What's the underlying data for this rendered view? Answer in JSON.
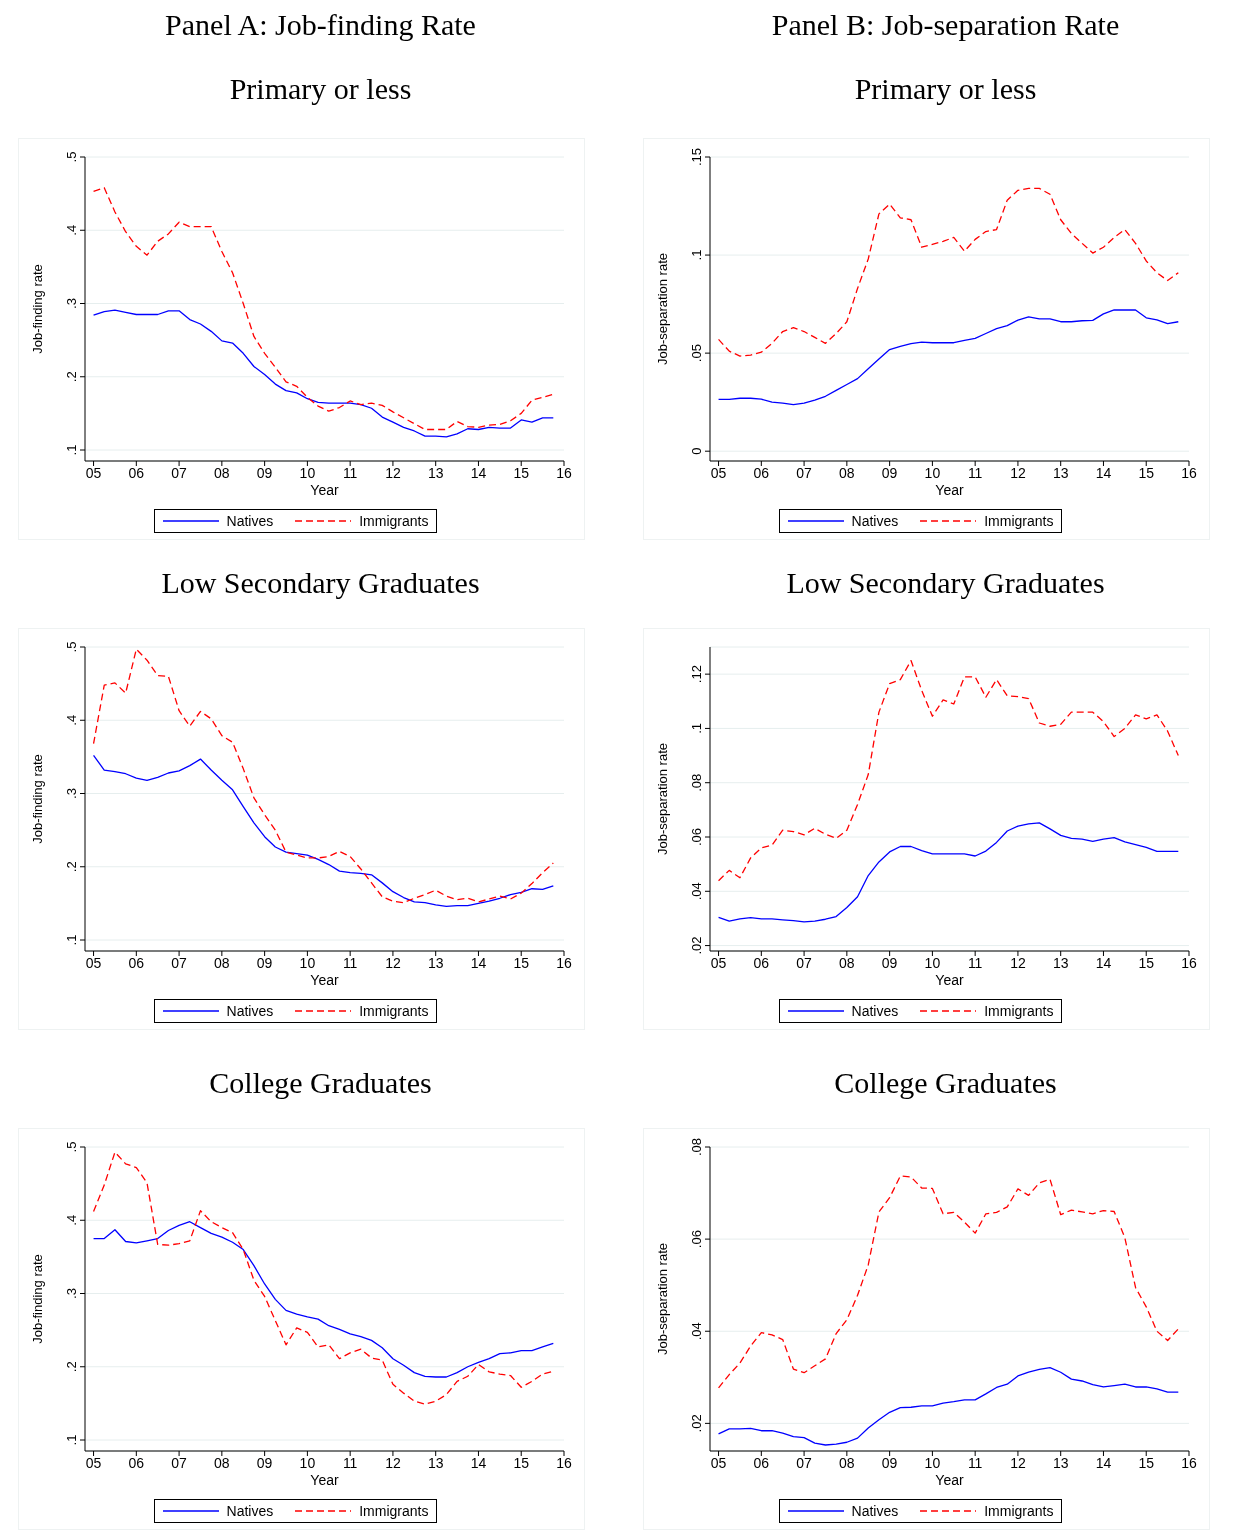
{
  "chart_data": [
    {
      "type": "line",
      "title": "Panel A: Job-finding Rate",
      "subtitle": "Primary or less",
      "xlabel": "Year",
      "ylabel": "Job-finding rate",
      "legend": "bottom",
      "grid": "y",
      "x": [
        2005,
        2005.25,
        2005.5,
        2005.75,
        2006,
        2006.25,
        2006.5,
        2006.75,
        2007,
        2007.25,
        2007.5,
        2007.75,
        2008,
        2008.25,
        2008.5,
        2008.75,
        2009,
        2009.25,
        2009.5,
        2009.75,
        2010,
        2010.25,
        2010.5,
        2010.75,
        2011,
        2011.25,
        2011.5,
        2011.75,
        2012,
        2012.25,
        2012.5,
        2012.75,
        2013,
        2013.25,
        2013.5,
        2013.75,
        2014,
        2014.25,
        2014.5,
        2014.75,
        2015,
        2015.25,
        2015.5,
        2015.75
      ],
      "xlim": [
        2004.8,
        2016
      ],
      "xticks": [
        {
          "value": 2005,
          "label": "05"
        },
        {
          "value": 2006,
          "label": "06"
        },
        {
          "value": 2007,
          "label": "07"
        },
        {
          "value": 2008,
          "label": "08"
        },
        {
          "value": 2009,
          "label": "09"
        },
        {
          "value": 2010,
          "label": "10"
        },
        {
          "value": 2011,
          "label": "11"
        },
        {
          "value": 2012,
          "label": "12"
        },
        {
          "value": 2013,
          "label": "13"
        },
        {
          "value": 2014,
          "label": "14"
        },
        {
          "value": 2015,
          "label": "15"
        },
        {
          "value": 2016,
          "label": "16"
        }
      ],
      "ylim": [
        0.085,
        0.5
      ],
      "yticks": [
        {
          "value": 0.1,
          "label": ".1"
        },
        {
          "value": 0.2,
          "label": ".2"
        },
        {
          "value": 0.3,
          "label": ".3"
        },
        {
          "value": 0.4,
          "label": ".4"
        },
        {
          "value": 0.5,
          "label": ".5"
        }
      ],
      "series": [
        {
          "name": "Natives",
          "color": "#0000ff",
          "line_style": "solid",
          "values": [
            0.284,
            0.289,
            0.291,
            0.288,
            0.285,
            0.285,
            0.285,
            0.29,
            0.29,
            0.278,
            0.272,
            0.262,
            0.249,
            0.246,
            0.232,
            0.214,
            0.203,
            0.19,
            0.181,
            0.178,
            0.17,
            0.165,
            0.164,
            0.164,
            0.164,
            0.162,
            0.157,
            0.145,
            0.138,
            0.131,
            0.126,
            0.119,
            0.119,
            0.118,
            0.122,
            0.129,
            0.128,
            0.131,
            0.13,
            0.13,
            0.141,
            0.138,
            0.144,
            0.144
          ]
        },
        {
          "name": "Immigrants",
          "color": "#ff0000",
          "line_style": "dashed",
          "values": [
            0.453,
            0.458,
            0.425,
            0.398,
            0.378,
            0.366,
            0.385,
            0.395,
            0.411,
            0.405,
            0.405,
            0.405,
            0.371,
            0.342,
            0.3,
            0.255,
            0.232,
            0.213,
            0.193,
            0.187,
            0.172,
            0.16,
            0.153,
            0.158,
            0.167,
            0.162,
            0.164,
            0.161,
            0.152,
            0.144,
            0.136,
            0.128,
            0.128,
            0.128,
            0.139,
            0.132,
            0.131,
            0.134,
            0.135,
            0.14,
            0.15,
            0.168,
            0.172,
            0.176
          ]
        }
      ]
    },
    {
      "type": "line",
      "title": "Panel B: Job-separation Rate",
      "subtitle": "Primary or less",
      "xlabel": "Year",
      "ylabel": "Job-separation rate",
      "legend": "bottom",
      "grid": "y",
      "x": [
        2005,
        2005.25,
        2005.5,
        2005.75,
        2006,
        2006.25,
        2006.5,
        2006.75,
        2007,
        2007.25,
        2007.5,
        2007.75,
        2008,
        2008.25,
        2008.5,
        2008.75,
        2009,
        2009.25,
        2009.5,
        2009.75,
        2010,
        2010.25,
        2010.5,
        2010.75,
        2011,
        2011.25,
        2011.5,
        2011.75,
        2012,
        2012.25,
        2012.5,
        2012.75,
        2013,
        2013.25,
        2013.5,
        2013.75,
        2014,
        2014.25,
        2014.5,
        2014.75,
        2015,
        2015.25,
        2015.5,
        2015.75
      ],
      "xlim": [
        2004.8,
        2016
      ],
      "xticks": [
        {
          "value": 2005,
          "label": "05"
        },
        {
          "value": 2006,
          "label": "06"
        },
        {
          "value": 2007,
          "label": "07"
        },
        {
          "value": 2008,
          "label": "08"
        },
        {
          "value": 2009,
          "label": "09"
        },
        {
          "value": 2010,
          "label": "10"
        },
        {
          "value": 2011,
          "label": "11"
        },
        {
          "value": 2012,
          "label": "12"
        },
        {
          "value": 2013,
          "label": "13"
        },
        {
          "value": 2014,
          "label": "14"
        },
        {
          "value": 2015,
          "label": "15"
        },
        {
          "value": 2016,
          "label": "16"
        }
      ],
      "ylim": [
        -0.005,
        0.15
      ],
      "yticks": [
        0,
        {
          "value": 0.05,
          "label": ".05"
        },
        {
          "value": 0.1,
          "label": ".1"
        },
        {
          "value": 0.15,
          "label": ".15"
        }
      ],
      "series": [
        {
          "name": "Natives",
          "color": "#0000ff",
          "line_style": "solid",
          "values": [
            0.0264,
            0.0264,
            0.027,
            0.027,
            0.0265,
            0.025,
            0.0245,
            0.0237,
            0.0245,
            0.026,
            0.028,
            0.031,
            0.034,
            0.037,
            0.042,
            0.047,
            0.0518,
            0.0535,
            0.0548,
            0.0556,
            0.0553,
            0.0553,
            0.0553,
            0.0565,
            0.0575,
            0.06,
            0.0625,
            0.064,
            0.0668,
            0.0685,
            0.0675,
            0.0675,
            0.066,
            0.066,
            0.0665,
            0.0667,
            0.07,
            0.072,
            0.072,
            0.072,
            0.068,
            0.067,
            0.065,
            0.066
          ]
        },
        {
          "name": "Immigrants",
          "color": "#ff0000",
          "line_style": "dashed",
          "values": [
            0.057,
            0.051,
            0.0485,
            0.049,
            0.0505,
            0.055,
            0.061,
            0.063,
            0.061,
            0.058,
            0.055,
            0.06,
            0.066,
            0.083,
            0.098,
            0.121,
            0.126,
            0.119,
            0.118,
            0.104,
            0.1055,
            0.107,
            0.109,
            0.102,
            0.108,
            0.112,
            0.113,
            0.128,
            0.133,
            0.134,
            0.134,
            0.131,
            0.118,
            0.111,
            0.106,
            0.101,
            0.104,
            0.109,
            0.113,
            0.106,
            0.097,
            0.091,
            0.087,
            0.091
          ]
        }
      ]
    },
    {
      "type": "line",
      "title": "Low Secondary Graduates",
      "xlabel": "Year",
      "ylabel": "Job-finding rate",
      "legend": "bottom",
      "grid": "y",
      "x": [
        2005,
        2005.25,
        2005.5,
        2005.75,
        2006,
        2006.25,
        2006.5,
        2006.75,
        2007,
        2007.25,
        2007.5,
        2007.75,
        2008,
        2008.25,
        2008.5,
        2008.75,
        2009,
        2009.25,
        2009.5,
        2009.75,
        2010,
        2010.25,
        2010.5,
        2010.75,
        2011,
        2011.25,
        2011.5,
        2011.75,
        2012,
        2012.25,
        2012.5,
        2012.75,
        2013,
        2013.25,
        2013.5,
        2013.75,
        2014,
        2014.25,
        2014.5,
        2014.75,
        2015,
        2015.25,
        2015.5,
        2015.75
      ],
      "xlim": [
        2004.8,
        2016
      ],
      "xticks": [
        {
          "value": 2005,
          "label": "05"
        },
        {
          "value": 2006,
          "label": "06"
        },
        {
          "value": 2007,
          "label": "07"
        },
        {
          "value": 2008,
          "label": "08"
        },
        {
          "value": 2009,
          "label": "09"
        },
        {
          "value": 2010,
          "label": "10"
        },
        {
          "value": 2011,
          "label": "11"
        },
        {
          "value": 2012,
          "label": "12"
        },
        {
          "value": 2013,
          "label": "13"
        },
        {
          "value": 2014,
          "label": "14"
        },
        {
          "value": 2015,
          "label": "15"
        },
        {
          "value": 2016,
          "label": "16"
        }
      ],
      "ylim": [
        0.085,
        0.5
      ],
      "yticks": [
        {
          "value": 0.1,
          "label": ".1"
        },
        {
          "value": 0.2,
          "label": ".2"
        },
        {
          "value": 0.3,
          "label": ".3"
        },
        {
          "value": 0.4,
          "label": ".4"
        },
        {
          "value": 0.5,
          "label": ".5"
        }
      ],
      "series": [
        {
          "name": "Natives",
          "color": "#0000ff",
          "line_style": "solid",
          "values": [
            0.352,
            0.332,
            0.33,
            0.327,
            0.321,
            0.318,
            0.322,
            0.328,
            0.331,
            0.338,
            0.347,
            0.332,
            0.318,
            0.305,
            0.282,
            0.26,
            0.241,
            0.227,
            0.22,
            0.218,
            0.216,
            0.21,
            0.203,
            0.194,
            0.192,
            0.191,
            0.189,
            0.178,
            0.166,
            0.158,
            0.152,
            0.151,
            0.148,
            0.146,
            0.147,
            0.147,
            0.15,
            0.153,
            0.157,
            0.162,
            0.165,
            0.17,
            0.169,
            0.174
          ]
        },
        {
          "name": "Immigrants",
          "color": "#ff0000",
          "line_style": "dashed",
          "values": [
            0.368,
            0.448,
            0.451,
            0.437,
            0.497,
            0.482,
            0.461,
            0.46,
            0.413,
            0.392,
            0.412,
            0.402,
            0.379,
            0.37,
            0.334,
            0.294,
            0.271,
            0.25,
            0.22,
            0.216,
            0.212,
            0.212,
            0.214,
            0.221,
            0.214,
            0.197,
            0.178,
            0.159,
            0.153,
            0.151,
            0.157,
            0.162,
            0.168,
            0.16,
            0.155,
            0.157,
            0.152,
            0.156,
            0.16,
            0.156,
            0.164,
            0.177,
            0.192,
            0.205
          ]
        }
      ]
    },
    {
      "type": "line",
      "title": "Low Secondary Graduates",
      "xlabel": "Year",
      "ylabel": "Job-separation rate",
      "legend": "bottom",
      "grid": "y",
      "x": [
        2005,
        2005.25,
        2005.5,
        2005.75,
        2006,
        2006.25,
        2006.5,
        2006.75,
        2007,
        2007.25,
        2007.5,
        2007.75,
        2008,
        2008.25,
        2008.5,
        2008.75,
        2009,
        2009.25,
        2009.5,
        2009.75,
        2010,
        2010.25,
        2010.5,
        2010.75,
        2011,
        2011.25,
        2011.5,
        2011.75,
        2012,
        2012.25,
        2012.5,
        2012.75,
        2013,
        2013.25,
        2013.5,
        2013.75,
        2014,
        2014.25,
        2014.5,
        2014.75,
        2015,
        2015.25,
        2015.5,
        2015.75
      ],
      "xlim": [
        2004.8,
        2016
      ],
      "xticks": [
        {
          "value": 2005,
          "label": "05"
        },
        {
          "value": 2006,
          "label": "06"
        },
        {
          "value": 2007,
          "label": "07"
        },
        {
          "value": 2008,
          "label": "08"
        },
        {
          "value": 2009,
          "label": "09"
        },
        {
          "value": 2010,
          "label": "10"
        },
        {
          "value": 2011,
          "label": "11"
        },
        {
          "value": 2012,
          "label": "12"
        },
        {
          "value": 2013,
          "label": "13"
        },
        {
          "value": 2014,
          "label": "14"
        },
        {
          "value": 2015,
          "label": "15"
        },
        {
          "value": 2016,
          "label": "16"
        }
      ],
      "ylim": [
        0.018,
        0.13
      ],
      "yticks": [
        {
          "value": 0.02,
          "label": ".02"
        },
        {
          "value": 0.04,
          "label": ".04"
        },
        {
          "value": 0.06,
          "label": ".06"
        },
        {
          "value": 0.08,
          "label": ".08"
        },
        {
          "value": 0.1,
          "label": ".1"
        },
        {
          "value": 0.12,
          "label": ".12"
        }
      ],
      "series": [
        {
          "name": "Natives",
          "color": "#0000ff",
          "line_style": "solid",
          "values": [
            0.0304,
            0.029,
            0.0298,
            0.0303,
            0.0298,
            0.0298,
            0.0295,
            0.0292,
            0.0287,
            0.029,
            0.0297,
            0.0307,
            0.034,
            0.038,
            0.0458,
            0.0508,
            0.0545,
            0.0565,
            0.0565,
            0.055,
            0.0538,
            0.0538,
            0.0538,
            0.0538,
            0.053,
            0.0548,
            0.058,
            0.0622,
            0.064,
            0.0648,
            0.0652,
            0.063,
            0.0606,
            0.0595,
            0.0592,
            0.0584,
            0.0592,
            0.0598,
            0.0582,
            0.0572,
            0.0562,
            0.0547,
            0.0547,
            0.0547
          ]
        },
        {
          "name": "Immigrants",
          "color": "#ff0000",
          "line_style": "dashed",
          "values": [
            0.0439,
            0.0477,
            0.045,
            0.0523,
            0.056,
            0.057,
            0.0625,
            0.062,
            0.0608,
            0.0632,
            0.061,
            0.0595,
            0.0625,
            0.072,
            0.083,
            0.106,
            0.1165,
            0.118,
            0.125,
            0.114,
            0.1045,
            0.1105,
            0.109,
            0.119,
            0.119,
            0.1115,
            0.118,
            0.112,
            0.1117,
            0.111,
            0.102,
            0.1008,
            0.1015,
            0.106,
            0.106,
            0.106,
            0.1025,
            0.097,
            0.1,
            0.105,
            0.1035,
            0.105,
            0.099,
            0.09
          ]
        }
      ]
    },
    {
      "type": "line",
      "title": "College Graduates",
      "xlabel": "Year",
      "ylabel": "Job-finding rate",
      "legend": "bottom",
      "grid": "y",
      "x": [
        2005,
        2005.25,
        2005.5,
        2005.75,
        2006,
        2006.25,
        2006.5,
        2006.75,
        2007,
        2007.25,
        2007.5,
        2007.75,
        2008,
        2008.25,
        2008.5,
        2008.75,
        2009,
        2009.25,
        2009.5,
        2009.75,
        2010,
        2010.25,
        2010.5,
        2010.75,
        2011,
        2011.25,
        2011.5,
        2011.75,
        2012,
        2012.25,
        2012.5,
        2012.75,
        2013,
        2013.25,
        2013.5,
        2013.75,
        2014,
        2014.25,
        2014.5,
        2014.75,
        2015,
        2015.25,
        2015.5,
        2015.75
      ],
      "xlim": [
        2004.8,
        2016
      ],
      "xticks": [
        {
          "value": 2005,
          "label": "05"
        },
        {
          "value": 2006,
          "label": "06"
        },
        {
          "value": 2007,
          "label": "07"
        },
        {
          "value": 2008,
          "label": "08"
        },
        {
          "value": 2009,
          "label": "09"
        },
        {
          "value": 2010,
          "label": "10"
        },
        {
          "value": 2011,
          "label": "11"
        },
        {
          "value": 2012,
          "label": "12"
        },
        {
          "value": 2013,
          "label": "13"
        },
        {
          "value": 2014,
          "label": "14"
        },
        {
          "value": 2015,
          "label": "15"
        },
        {
          "value": 2016,
          "label": "16"
        }
      ],
      "ylim": [
        0.085,
        0.5
      ],
      "yticks": [
        {
          "value": 0.1,
          "label": ".1"
        },
        {
          "value": 0.2,
          "label": ".2"
        },
        {
          "value": 0.3,
          "label": ".3"
        },
        {
          "value": 0.4,
          "label": ".4"
        },
        {
          "value": 0.5,
          "label": ".5"
        }
      ],
      "series": [
        {
          "name": "Natives",
          "color": "#0000ff",
          "line_style": "solid",
          "values": [
            0.375,
            0.375,
            0.387,
            0.371,
            0.369,
            0.372,
            0.375,
            0.386,
            0.393,
            0.398,
            0.39,
            0.382,
            0.377,
            0.37,
            0.36,
            0.338,
            0.313,
            0.292,
            0.277,
            0.272,
            0.268,
            0.265,
            0.256,
            0.251,
            0.245,
            0.241,
            0.236,
            0.226,
            0.211,
            0.202,
            0.192,
            0.187,
            0.186,
            0.186,
            0.192,
            0.2,
            0.206,
            0.211,
            0.218,
            0.219,
            0.222,
            0.222,
            0.227,
            0.232
          ]
        },
        {
          "name": "Immigrants",
          "color": "#ff0000",
          "line_style": "dashed",
          "values": [
            0.412,
            0.448,
            0.493,
            0.477,
            0.472,
            0.451,
            0.367,
            0.366,
            0.368,
            0.372,
            0.413,
            0.398,
            0.39,
            0.383,
            0.36,
            0.318,
            0.296,
            0.263,
            0.23,
            0.253,
            0.247,
            0.227,
            0.23,
            0.211,
            0.219,
            0.224,
            0.212,
            0.209,
            0.176,
            0.164,
            0.153,
            0.149,
            0.153,
            0.162,
            0.18,
            0.187,
            0.203,
            0.193,
            0.19,
            0.188,
            0.172,
            0.18,
            0.19,
            0.194
          ]
        }
      ]
    },
    {
      "type": "line",
      "title": "College Graduates",
      "xlabel": "Year",
      "ylabel": "Job-separation rate",
      "legend": "bottom",
      "grid": "y",
      "x": [
        2005,
        2005.25,
        2005.5,
        2005.75,
        2006,
        2006.25,
        2006.5,
        2006.75,
        2007,
        2007.25,
        2007.5,
        2007.75,
        2008,
        2008.25,
        2008.5,
        2008.75,
        2009,
        2009.25,
        2009.5,
        2009.75,
        2010,
        2010.25,
        2010.5,
        2010.75,
        2011,
        2011.25,
        2011.5,
        2011.75,
        2012,
        2012.25,
        2012.5,
        2012.75,
        2013,
        2013.25,
        2013.5,
        2013.75,
        2014,
        2014.25,
        2014.5,
        2014.75,
        2015,
        2015.25,
        2015.5,
        2015.75
      ],
      "xlim": [
        2004.8,
        2016
      ],
      "xticks": [
        {
          "value": 2005,
          "label": "05"
        },
        {
          "value": 2006,
          "label": "06"
        },
        {
          "value": 2007,
          "label": "07"
        },
        {
          "value": 2008,
          "label": "08"
        },
        {
          "value": 2009,
          "label": "09"
        },
        {
          "value": 2010,
          "label": "10"
        },
        {
          "value": 2011,
          "label": "11"
        },
        {
          "value": 2012,
          "label": "12"
        },
        {
          "value": 2013,
          "label": "13"
        },
        {
          "value": 2014,
          "label": "14"
        },
        {
          "value": 2015,
          "label": "15"
        },
        {
          "value": 2016,
          "label": "16"
        }
      ],
      "ylim": [
        0.014,
        0.08
      ],
      "yticks": [
        {
          "value": 0.02,
          "label": ".02"
        },
        {
          "value": 0.04,
          "label": ".04"
        },
        {
          "value": 0.06,
          "label": ".06"
        },
        {
          "value": 0.08,
          "label": ".08"
        }
      ],
      "series": [
        {
          "name": "Natives",
          "color": "#0000ff",
          "line_style": "solid",
          "values": [
            0.0177,
            0.0188,
            0.0188,
            0.0189,
            0.0184,
            0.0184,
            0.0179,
            0.0171,
            0.0169,
            0.0157,
            0.0153,
            0.0155,
            0.0159,
            0.0168,
            0.019,
            0.0208,
            0.0224,
            0.0234,
            0.0235,
            0.0238,
            0.0238,
            0.0244,
            0.0247,
            0.0251,
            0.0251,
            0.0264,
            0.0278,
            0.0285,
            0.0303,
            0.0311,
            0.0317,
            0.0321,
            0.0311,
            0.0296,
            0.0292,
            0.0284,
            0.0279,
            0.0282,
            0.0285,
            0.0279,
            0.0279,
            0.0275,
            0.0268,
            0.0268
          ]
        },
        {
          "name": "Immigrants",
          "color": "#ff0000",
          "line_style": "dashed",
          "values": [
            0.0277,
            0.0306,
            0.0331,
            0.0368,
            0.0397,
            0.0392,
            0.0382,
            0.0318,
            0.031,
            0.0325,
            0.034,
            0.0395,
            0.0425,
            0.0478,
            0.0544,
            0.0659,
            0.069,
            0.0737,
            0.0735,
            0.0711,
            0.071,
            0.0655,
            0.0658,
            0.0637,
            0.0613,
            0.0655,
            0.0658,
            0.067,
            0.0709,
            0.0695,
            0.0722,
            0.073,
            0.0653,
            0.0663,
            0.0659,
            0.0655,
            0.0662,
            0.066,
            0.0603,
            0.0495,
            0.0453,
            0.04,
            0.038,
            0.0405
          ]
        }
      ]
    }
  ]
}
